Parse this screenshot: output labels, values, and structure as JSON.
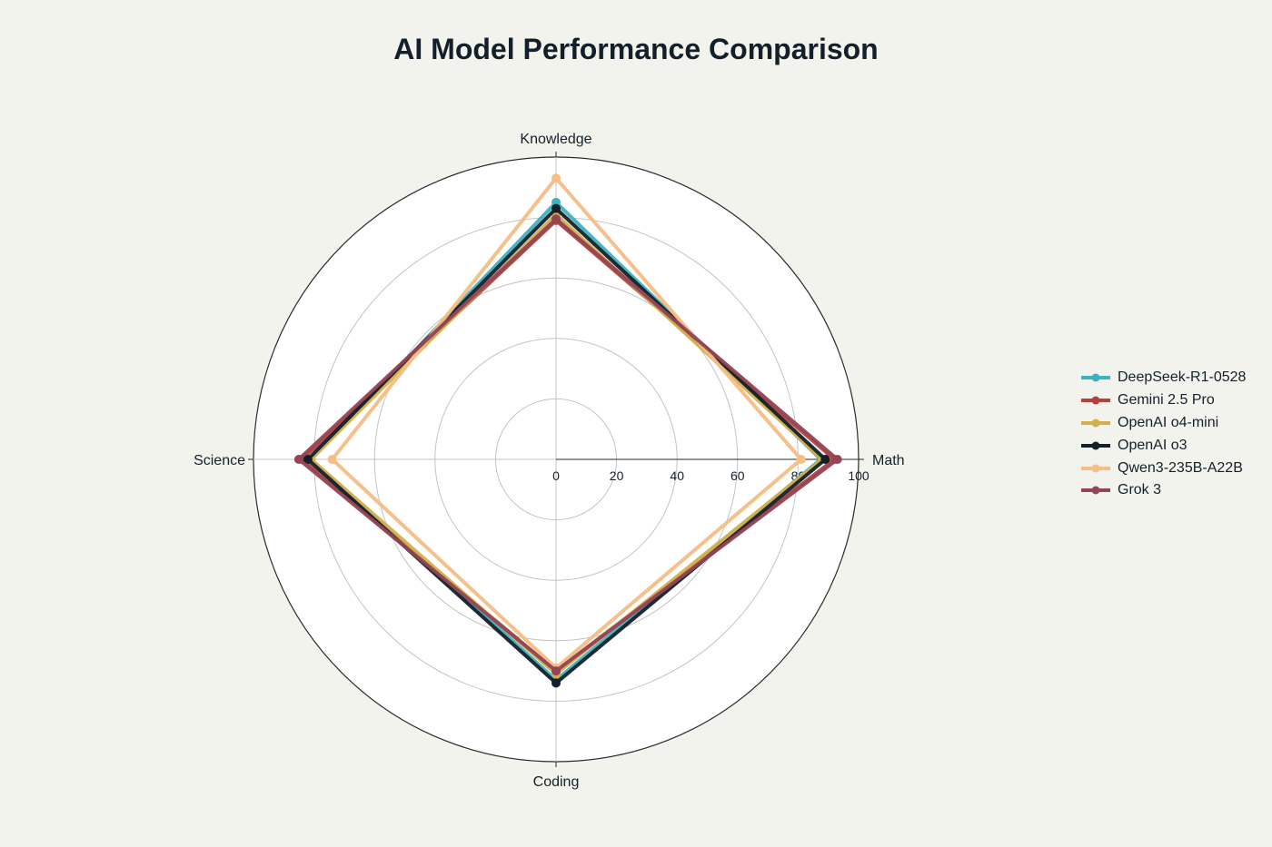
{
  "chart_data": {
    "type": "radar",
    "title": "AI Model Performance Comparison",
    "axes": [
      "Knowledge",
      "Math",
      "Coding",
      "Science"
    ],
    "radial_ticks": [
      "0",
      "20",
      "40",
      "60",
      "80",
      "100"
    ],
    "rlim": [
      0,
      100
    ],
    "grid": true,
    "legend_position": "right",
    "series": [
      {
        "name": "DeepSeek-R1-0528",
        "color": "#3fb1c0",
        "values": [
          85,
          87.5,
          73,
          81
        ]
      },
      {
        "name": "Gemini 2.5 Pro",
        "color": "#b4413c",
        "values": [
          79,
          92,
          70,
          84
        ]
      },
      {
        "name": "OpenAI o4-mini",
        "color": "#d4b04c",
        "values": [
          81,
          88,
          71,
          81
        ]
      },
      {
        "name": "OpenAI o3",
        "color": "#13202a",
        "values": [
          83,
          89,
          74,
          82
        ]
      },
      {
        "name": "Qwen3-235B-A22B",
        "color": "#f6bd84",
        "values": [
          93,
          81,
          69,
          74
        ]
      },
      {
        "name": "Grok 3",
        "color": "#944454",
        "values": [
          79.5,
          93,
          70,
          85
        ]
      }
    ]
  }
}
